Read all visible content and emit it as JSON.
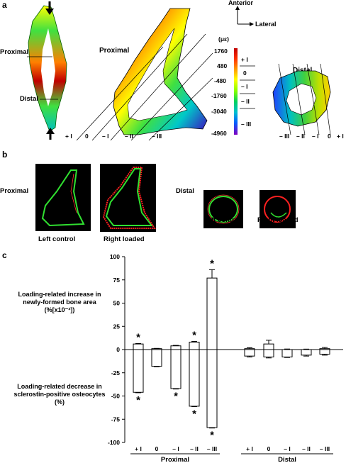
{
  "panel_a": {
    "label": "a",
    "orientation": {
      "up": "Anterior",
      "right": "Lateral"
    },
    "bone_labels": {
      "proximal": "Proximal",
      "distal": "Distal"
    },
    "proximal_title": "Proximal",
    "distal_title": "Distal",
    "scale_unit": "(με)",
    "scale_ticks": [
      "1760",
      "480",
      "-480",
      "-1760",
      "-3040",
      "-4960"
    ],
    "zones": [
      "+ I",
      "0",
      "– I",
      "– II",
      "– III"
    ]
  },
  "panel_b": {
    "label": "b",
    "proximal_label": "Proximal",
    "distal_label": "Distal",
    "captions": [
      "Left control",
      "Right loaded",
      "Left control",
      "Right loaded"
    ]
  },
  "panel_c": {
    "label": "c",
    "upper_text": [
      "Loading-related increase in",
      "newly-formed bone area",
      "(%[x10⁻²])"
    ],
    "lower_text": [
      "Loading-related decrease in",
      "sclerostin-positive osteocytes",
      "(%)"
    ],
    "group_labels": [
      "Proximal",
      "Distal"
    ]
  },
  "chart_data": {
    "type": "bar",
    "ylim": [
      -100,
      100
    ],
    "yticks": [
      "100",
      "75",
      "50",
      "25",
      "0",
      "-25",
      "-50",
      "-75",
      "-100"
    ],
    "groups": [
      {
        "name": "Proximal",
        "categories": [
          "+ I",
          "0",
          "– I",
          "– II",
          "– III"
        ]
      },
      {
        "name": "Distal",
        "categories": [
          "+ I",
          "0",
          "– I",
          "– II",
          "– III"
        ]
      }
    ],
    "series": [
      {
        "values": [
          6,
          1,
          4,
          8,
          77,
          1,
          6,
          0,
          0,
          1
        ],
        "errors": [
          0.5,
          0.3,
          0.5,
          0.8,
          9,
          1,
          4,
          0.6,
          0.5,
          1.2
        ]
      },
      {
        "values": [
          -46,
          -18,
          -42,
          -61,
          -84,
          -7,
          -8,
          -8,
          -6,
          -5
        ],
        "errors": [
          0.5,
          0.5,
          0.5,
          0.5,
          0.5,
          1,
          1,
          0.5,
          1,
          1
        ]
      }
    ],
    "significance": [
      {
        "series": 0,
        "index": 0,
        "mark": "*"
      },
      {
        "series": 0,
        "index": 3,
        "mark": "*"
      },
      {
        "series": 0,
        "index": 4,
        "mark": "*"
      },
      {
        "series": 1,
        "index": 0,
        "mark": "*"
      },
      {
        "series": 1,
        "index": 2,
        "mark": "*"
      },
      {
        "series": 1,
        "index": 3,
        "mark": "*"
      },
      {
        "series": 1,
        "index": 4,
        "mark": "*"
      }
    ]
  }
}
